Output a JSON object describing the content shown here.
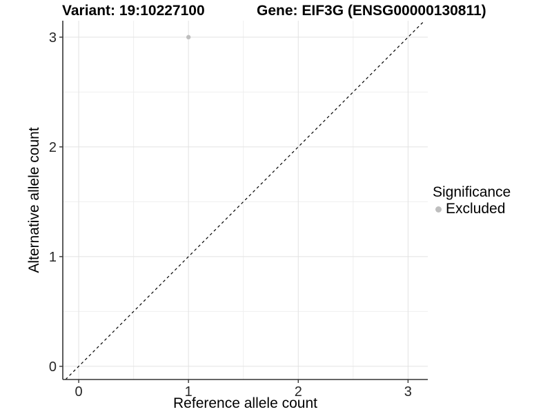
{
  "chart_data": {
    "type": "scatter",
    "title_left": "Variant: 19:10227100",
    "title_right": "Gene: EIF3G (ENSG00000130811)",
    "xlabel": "Reference allele count",
    "ylabel": "Alternative allele count",
    "xlim": [
      -0.145,
      3.18
    ],
    "ylim": [
      -0.12,
      3.15
    ],
    "xticks": [
      0,
      1,
      2,
      3
    ],
    "yticks": [
      0,
      1,
      2,
      3
    ],
    "minor_xticks": [
      0.5,
      1.5,
      2.5
    ],
    "minor_yticks": [
      0.5,
      1.5,
      2.5
    ],
    "grid": true,
    "points": [
      {
        "x": 1,
        "y": 3,
        "series": "Excluded"
      }
    ],
    "abline": {
      "slope": 1,
      "intercept": 0,
      "style": "dashed"
    },
    "legend": {
      "title": "Significance",
      "position": "right",
      "entries": [
        {
          "label": "Excluded",
          "color": "#bebebe"
        }
      ]
    },
    "colors": {
      "point": "#bebebe",
      "abline": "#000000",
      "axis_line": "#333333",
      "tick_mark": "#333333",
      "tick_text": "#262626",
      "grid_major": "#e2e2e2",
      "grid_minor": "#efefef",
      "background": "#ffffff"
    }
  }
}
